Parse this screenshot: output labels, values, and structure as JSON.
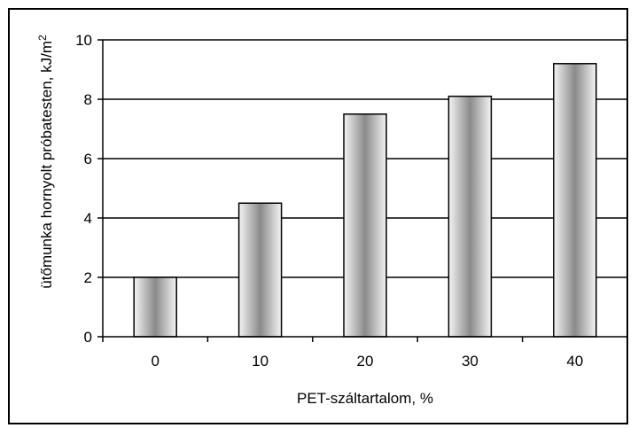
{
  "chart_data": {
    "type": "bar",
    "categories": [
      "0",
      "10",
      "20",
      "30",
      "40"
    ],
    "values": [
      2.0,
      4.5,
      7.5,
      8.1,
      9.2
    ],
    "title": "",
    "xlabel": "PET-száltartalom, %",
    "ylabel": "ütőmunka hornyolt próbatesten, kJ/m",
    "ylabel_superscript": "2",
    "ylim": [
      0,
      10
    ],
    "yticks": [
      "0",
      "2",
      "4",
      "6",
      "8",
      "10"
    ],
    "grid": "horizontal",
    "legend": "none",
    "colors": {
      "bar_dark": "#8a8a8a",
      "bar_light": "#f4f4f4",
      "axis": "#000000",
      "grid": "#000000"
    }
  }
}
